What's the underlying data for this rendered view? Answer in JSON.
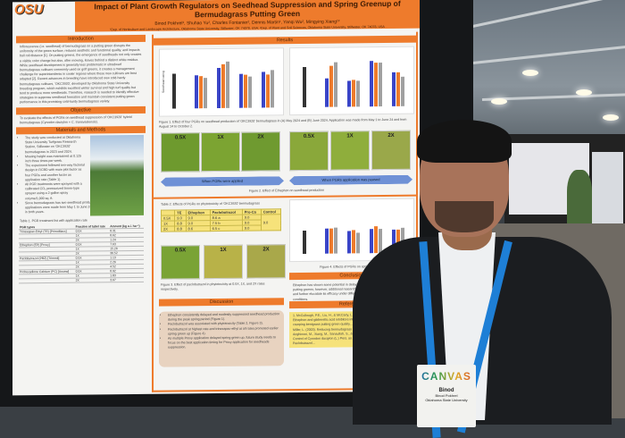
{
  "poster": {
    "logo": "OSU",
    "title": "Impact of Plant Growth Regulators on Seedhead Suppression and Spring Greenup of Bermudagrass Putting Green",
    "authors": "Binod Pokhrel¹, Shuhao Yu², Charles Fontanier¹, Dennis Martin¹, Yanqi Wu², Mingying Xiang¹*",
    "affiliations": "¹Dep. of Horticulture and Landscape Architecture, Oklahoma State University, Stillwater, OK 74078, USA; ²Dep. of Plant and Soil Sciences, Oklahoma State University, Stillwater, OK 74078, USA",
    "introduction": {
      "heading": "Introduction",
      "text": "Inflorescence (i.e. seedhead) of bermudagrass on a putting green disrupts the uniformity of the green surface, reduces aesthetic and functional quality, and impacts ball roll distance [1]. On putting greens, the emergence of seedheads not only creates a visible color change but also, after mowing, leaves behind a distinct white residue. While seedhead development is generally less problematic in ultradwarf bermudagrass cultivars commonly used on golf greens, it creates a management challenge for superintendents in cooler regions where these new cultivars are best adapted [2]. Recent advances in breeding have introduced new cold-hardy bermudagrass cultivars, 'OKC3920', developed by Oklahoma State University breeding program, which exhibits excellent winter survival and high turf quality but tend to produce more seedheads. Therefore, research is needed to identify effective strategies to suppress seedhead formation and maintain consistent putting green performance in this promising cold-hardy bermudagrass variety."
    },
    "objective": {
      "heading": "Objective",
      "text": "To evaluate the effects of PGRs on seedhead suppression of 'OKC3920' hybrid bermudagrass (Cynodon dactylon × C. transvaalensis)."
    },
    "methods": {
      "heading": "Materials and Methods",
      "bullets": [
        "The study was conducted at Oklahoma State University Turfgrass Research Station, Stillwater on 'OKC3920' bermudagrass in 2023 and 2024.",
        "Mowing height was maintained at 0.125 inch three times per week.",
        "The experiment followed two-way factorial design in RCBD with main plot factor as four PGRs and another factor as application rate (Table 1).",
        "All PGR treatments were sprayed with a calibrated CO₂ pressurized boom-type sprayer using a 2-gallon spray volume/1,000 sq. ft.",
        "Since bermudagrass has two seedhead production seasons (May and August), applications were made from May 1 to June 24 and from August 14 to October 2 in both years."
      ]
    },
    "table1": {
      "caption": "Table 1. PGR treatment list with application rate",
      "headers": [
        "PGR types",
        "Fraction of label rate",
        "Amount (kg a.i. ha⁻¹)"
      ],
      "rows": [
        [
          "Trinexapac-Ethyl (TE) [PrimoMaxx]",
          "0.5X",
          "0.31"
        ],
        [
          "",
          "1X",
          "0.62"
        ],
        [
          "",
          "2X",
          "1.24"
        ],
        [
          "Ethephon (EP) [Proxy]",
          "0.5X",
          "7.63"
        ],
        [
          "",
          "1X",
          "15.26"
        ],
        [
          "",
          "2X",
          "30.52"
        ],
        [
          "Paclobutrazol (PBZ) [Trimmit]",
          "0.5X",
          "1.13"
        ],
        [
          "",
          "1X",
          "2.26"
        ],
        [
          "",
          "2X",
          "4.52"
        ],
        [
          "Prohexadione Calcium (PC) [Anuew]",
          "0.5X",
          "0.92"
        ],
        [
          "",
          "1X",
          "1.83"
        ],
        [
          "",
          "2X",
          "3.67"
        ]
      ]
    },
    "results": {
      "heading": "Results",
      "fig1_caption": "Figure 1. Effect of four PGRs on seedhead production of 'OKC3920' bermudagrass in (A) May 2024 and (B) June 2024. Application was made from May 1 to June 24 and from August 14 to October 2.",
      "fig2_caption": "Figure 2. Effect of Ethephon on seedhead production",
      "arrow_applied": "When PGRs were applied",
      "arrow_paused": "When PGRs application was paused",
      "rates": [
        "0.5X",
        "1X",
        "2X"
      ],
      "legend": [
        "0.5X",
        "1X",
        "2X"
      ],
      "categories": [
        "Control",
        "Trinexapac-Ethyl",
        "Ethephon",
        "Paclobutrazol",
        "Prohexadione Calcium"
      ],
      "xlabel": "PGR types",
      "ylabel_a": "Seedhead rating",
      "table2": {
        "caption": "Table 2. Effects of PGRs on phytotoxicity of 'OKC3920' bermudagrass",
        "headers": [
          "",
          "TE",
          "Ethephon",
          "Paclobutrazol",
          "Pro-Ca",
          "Control"
        ],
        "rows": [
          [
            "0.5X",
            "9.0",
            "9.0",
            "8.6 a",
            "9.0",
            "9.0"
          ],
          [
            "1X",
            "8.8",
            "9.0",
            "7.5 b",
            "9.0",
            ""
          ],
          [
            "2X",
            "8.8",
            "8.6",
            "6.5 c",
            "9.0",
            ""
          ]
        ]
      },
      "fig3_caption": "Figure 3. Effect of paclobutrazol in phytotoxicity at 0.5X, 1X, and 2X rates respectively.",
      "fig4_caption": "Figure 4. Effects of PGRs on spring green up"
    },
    "discussion": {
      "heading": "Discussion",
      "bullets": [
        "Ethephon consistently delayed and modestly suppressed seedhead production during the peak spring period (Figure 1).",
        "Paclobutrazol was associated with phytotoxicity (Table 2, Figure 3).",
        "Paclobutrazol at highest rate and trinexapac-ethyl at all rates promoted earlier spring green up (Figure 4).",
        "As multiple Proxy application delayed spring green up, future study needs to focus on the best application timing for Proxy application for seedheads suppression."
      ]
    },
    "conclusion": {
      "heading": "Conclusion",
      "text": "Ethephon has shown some potential in delaying seedhead of bermudagrass putting greens; however, additional research is needed to validate these results and further elucidate its efficacy under different environmental and management conditions."
    },
    "references": {
      "heading": "References",
      "text": "1. McCullough, P.E., Liu, H., & McCarty, L. B. (2005). Ethephon and gibberellic acid inhibitors influence creeping bentgrass putting green quality... 2. Kane, R., & Miller, L. (2003). Reducing bermudagrass seedhead... 3. Anghinoni, M., Xiang, M., Sanaullah, S., & Tobias... Control of Cynodon dactylon (L.) Pers. as Affected by Paclobutrazol..."
    }
  },
  "badge": {
    "brand": "CANVAS",
    "name": "Binod",
    "full_name": "Binod Pokhrel",
    "org": "Oklahoma State University"
  },
  "colors": {
    "poster_accent": "#ee7b2c",
    "lanyard": "#1e7fd6",
    "table_fill": "#f6e27a"
  }
}
